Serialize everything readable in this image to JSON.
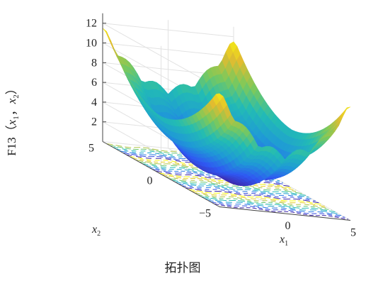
{
  "chart_data": {
    "type": "surface",
    "caption": "拓扑图",
    "zlabel": {
      "prefix": "F13（",
      "v1": "x",
      "s1": "1",
      "sep": "，",
      "v2": "x",
      "s2": "2",
      "suffix": "）"
    },
    "xlabel": {
      "v": "x",
      "s": "1"
    },
    "ylabel": {
      "v": "x",
      "s": "2"
    },
    "xlim": [
      -5,
      5
    ],
    "ylim": [
      -5,
      5
    ],
    "zlim": [
      0,
      13
    ],
    "x_ticks": [
      "0",
      "5"
    ],
    "y_ticks": [
      "−5",
      "0",
      "5"
    ],
    "z_ticks": [
      "2",
      "4",
      "6",
      "8",
      "10",
      "12"
    ],
    "x_tick_values": [
      0,
      5
    ],
    "y_tick_values": [
      -5,
      0,
      5
    ],
    "z_tick_values": [
      2,
      4,
      6,
      8,
      10,
      12
    ],
    "surface": {
      "function": "F13 (x1, x2)",
      "min_value": 0,
      "max_value": 12,
      "colormap": [
        "#3e26a8",
        "#2f58f3",
        "#1f9ad6",
        "#22bcb4",
        "#7ec95a",
        "#e3bc2f",
        "#f9fb0e"
      ],
      "has_contour_projection": true
    },
    "grid": true
  }
}
